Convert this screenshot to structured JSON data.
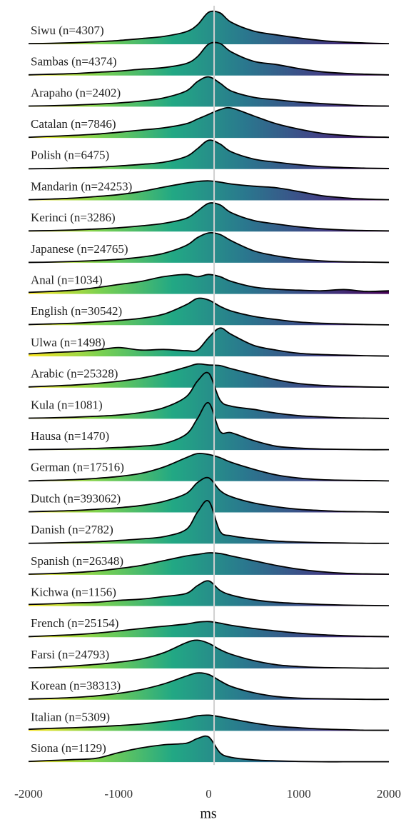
{
  "chart_data": {
    "type": "ridgeline",
    "x_label": "ms",
    "xlim": [
      -2000,
      2000
    ],
    "xticks": [
      -2000,
      -1000,
      0,
      1000,
      2000
    ],
    "vline": 60,
    "palette": [
      "#fde725",
      "#7ad151",
      "#22a884",
      "#2a788e",
      "#414487",
      "#440154"
    ],
    "x": [
      -2000,
      -1750,
      -1500,
      -1250,
      -1000,
      -750,
      -500,
      -250,
      -125,
      0,
      125,
      250,
      500,
      750,
      1000,
      1250,
      1500,
      1750,
      2000
    ],
    "series": [
      {
        "name": "Siwu (n=4307)",
        "values": [
          0.02,
          0.03,
          0.05,
          0.08,
          0.12,
          0.18,
          0.25,
          0.4,
          0.62,
          1.02,
          1.0,
          0.7,
          0.42,
          0.3,
          0.2,
          0.12,
          0.07,
          0.04,
          0.02
        ]
      },
      {
        "name": "Sambas (n=4374)",
        "values": [
          0.02,
          0.04,
          0.06,
          0.1,
          0.14,
          0.2,
          0.25,
          0.38,
          0.6,
          1.0,
          1.02,
          0.75,
          0.45,
          0.35,
          0.22,
          0.12,
          0.07,
          0.04,
          0.02
        ]
      },
      {
        "name": "Arapaho (n=2402)",
        "values": [
          0.02,
          0.03,
          0.05,
          0.08,
          0.12,
          0.18,
          0.28,
          0.5,
          0.8,
          0.95,
          0.75,
          0.5,
          0.3,
          0.22,
          0.15,
          0.1,
          0.06,
          0.03,
          0.02
        ]
      },
      {
        "name": "Catalan (n=7846)",
        "values": [
          0.02,
          0.05,
          0.08,
          0.12,
          0.18,
          0.25,
          0.32,
          0.45,
          0.6,
          0.75,
          0.9,
          0.95,
          0.7,
          0.45,
          0.28,
          0.15,
          0.08,
          0.04,
          0.02
        ]
      },
      {
        "name": "Polish (n=6475)",
        "values": [
          0.01,
          0.02,
          0.04,
          0.06,
          0.1,
          0.15,
          0.22,
          0.4,
          0.65,
          0.92,
          0.8,
          0.55,
          0.32,
          0.22,
          0.14,
          0.08,
          0.05,
          0.03,
          0.02
        ]
      },
      {
        "name": "Mandarin (n=24253)",
        "values": [
          0.02,
          0.04,
          0.07,
          0.12,
          0.18,
          0.28,
          0.42,
          0.55,
          0.6,
          0.62,
          0.58,
          0.52,
          0.45,
          0.4,
          0.28,
          0.15,
          0.08,
          0.04,
          0.02
        ]
      },
      {
        "name": "Kerinci (n=3286)",
        "values": [
          0.02,
          0.03,
          0.05,
          0.08,
          0.12,
          0.18,
          0.26,
          0.42,
          0.65,
          0.9,
          0.85,
          0.6,
          0.35,
          0.24,
          0.15,
          0.09,
          0.05,
          0.03,
          0.02
        ]
      },
      {
        "name": "Japanese (n=24765)",
        "values": [
          0.01,
          0.02,
          0.04,
          0.07,
          0.11,
          0.18,
          0.3,
          0.55,
          0.8,
          0.95,
          0.9,
          0.7,
          0.38,
          0.22,
          0.12,
          0.06,
          0.03,
          0.02,
          0.01
        ]
      },
      {
        "name": "Anal (n=1034)",
        "values": [
          0.05,
          0.08,
          0.12,
          0.2,
          0.3,
          0.4,
          0.55,
          0.62,
          0.55,
          0.62,
          0.55,
          0.4,
          0.22,
          0.15,
          0.12,
          0.1,
          0.14,
          0.08,
          0.1
        ]
      },
      {
        "name": "English (n=30542)",
        "values": [
          0.02,
          0.04,
          0.06,
          0.1,
          0.15,
          0.22,
          0.35,
          0.65,
          0.85,
          0.8,
          0.6,
          0.45,
          0.28,
          0.18,
          0.1,
          0.06,
          0.04,
          0.02,
          0.01
        ]
      },
      {
        "name": "Ulwa (n=1498)",
        "values": [
          0.08,
          0.12,
          0.15,
          0.2,
          0.28,
          0.2,
          0.22,
          0.18,
          0.2,
          0.6,
          0.9,
          0.7,
          0.35,
          0.2,
          0.1,
          0.06,
          0.04,
          0.02,
          0.01
        ]
      },
      {
        "name": "Arabic (n=25328)",
        "values": [
          0.02,
          0.05,
          0.08,
          0.13,
          0.2,
          0.3,
          0.45,
          0.65,
          0.75,
          0.72,
          0.7,
          0.6,
          0.42,
          0.25,
          0.13,
          0.07,
          0.04,
          0.02,
          0.01
        ]
      },
      {
        "name": "Kula (n=1081)",
        "values": [
          0.02,
          0.03,
          0.05,
          0.08,
          0.12,
          0.2,
          0.35,
          0.7,
          1.2,
          1.45,
          0.6,
          0.4,
          0.3,
          0.18,
          0.1,
          0.06,
          0.03,
          0.02,
          0.01
        ]
      },
      {
        "name": "Hausa (n=1470)",
        "values": [
          0.01,
          0.02,
          0.03,
          0.05,
          0.08,
          0.12,
          0.2,
          0.5,
          1.0,
          1.5,
          0.6,
          0.55,
          0.3,
          0.12,
          0.06,
          0.03,
          0.02,
          0.01,
          0.01
        ]
      },
      {
        "name": "German (n=17516)",
        "values": [
          0.01,
          0.03,
          0.05,
          0.09,
          0.15,
          0.25,
          0.45,
          0.75,
          0.88,
          0.85,
          0.75,
          0.6,
          0.38,
          0.2,
          0.1,
          0.05,
          0.03,
          0.02,
          0.01
        ]
      },
      {
        "name": "Dutch (n=393062)",
        "values": [
          0.02,
          0.04,
          0.06,
          0.1,
          0.15,
          0.22,
          0.35,
          0.6,
          0.95,
          1.1,
          0.7,
          0.5,
          0.3,
          0.18,
          0.1,
          0.06,
          0.03,
          0.02,
          0.01
        ]
      },
      {
        "name": "Danish (n=2782)",
        "values": [
          0.01,
          0.02,
          0.04,
          0.06,
          0.1,
          0.15,
          0.22,
          0.45,
          1.0,
          1.35,
          0.4,
          0.25,
          0.15,
          0.08,
          0.05,
          0.03,
          0.02,
          0.01,
          0.01
        ]
      },
      {
        "name": "Spanish (n=26348)",
        "values": [
          0.02,
          0.04,
          0.07,
          0.12,
          0.2,
          0.3,
          0.45,
          0.6,
          0.65,
          0.7,
          0.68,
          0.6,
          0.45,
          0.3,
          0.18,
          0.1,
          0.05,
          0.03,
          0.02
        ]
      },
      {
        "name": "Kichwa (n=1156)",
        "values": [
          0.05,
          0.07,
          0.1,
          0.12,
          0.18,
          0.22,
          0.3,
          0.4,
          0.65,
          0.8,
          0.5,
          0.35,
          0.2,
          0.12,
          0.08,
          0.05,
          0.03,
          0.02,
          0.01
        ]
      },
      {
        "name": "French (n=25154)",
        "values": [
          0.02,
          0.05,
          0.08,
          0.13,
          0.2,
          0.28,
          0.35,
          0.42,
          0.48,
          0.5,
          0.45,
          0.38,
          0.28,
          0.2,
          0.13,
          0.08,
          0.05,
          0.03,
          0.02
        ]
      },
      {
        "name": "Farsi (n=24793)",
        "values": [
          0.02,
          0.04,
          0.08,
          0.13,
          0.2,
          0.3,
          0.5,
          0.82,
          0.9,
          0.8,
          0.6,
          0.45,
          0.25,
          0.12,
          0.06,
          0.03,
          0.02,
          0.01,
          0.01
        ]
      },
      {
        "name": "Korean (n=38313)",
        "values": [
          0.02,
          0.04,
          0.07,
          0.12,
          0.2,
          0.32,
          0.5,
          0.75,
          0.85,
          0.8,
          0.6,
          0.42,
          0.22,
          0.1,
          0.05,
          0.03,
          0.02,
          0.01,
          0.01
        ]
      },
      {
        "name": "Italian (n=5309)",
        "values": [
          0.05,
          0.08,
          0.1,
          0.13,
          0.17,
          0.22,
          0.3,
          0.4,
          0.48,
          0.5,
          0.45,
          0.38,
          0.25,
          0.15,
          0.1,
          0.06,
          0.04,
          0.02,
          0.02
        ]
      },
      {
        "name": "Siona (n=1129)",
        "values": [
          0.02,
          0.05,
          0.08,
          0.12,
          0.3,
          0.45,
          0.55,
          0.6,
          0.75,
          0.8,
          0.3,
          0.15,
          0.07,
          0.04,
          0.02,
          0.01,
          0.01,
          0.01,
          0.01
        ]
      }
    ]
  }
}
